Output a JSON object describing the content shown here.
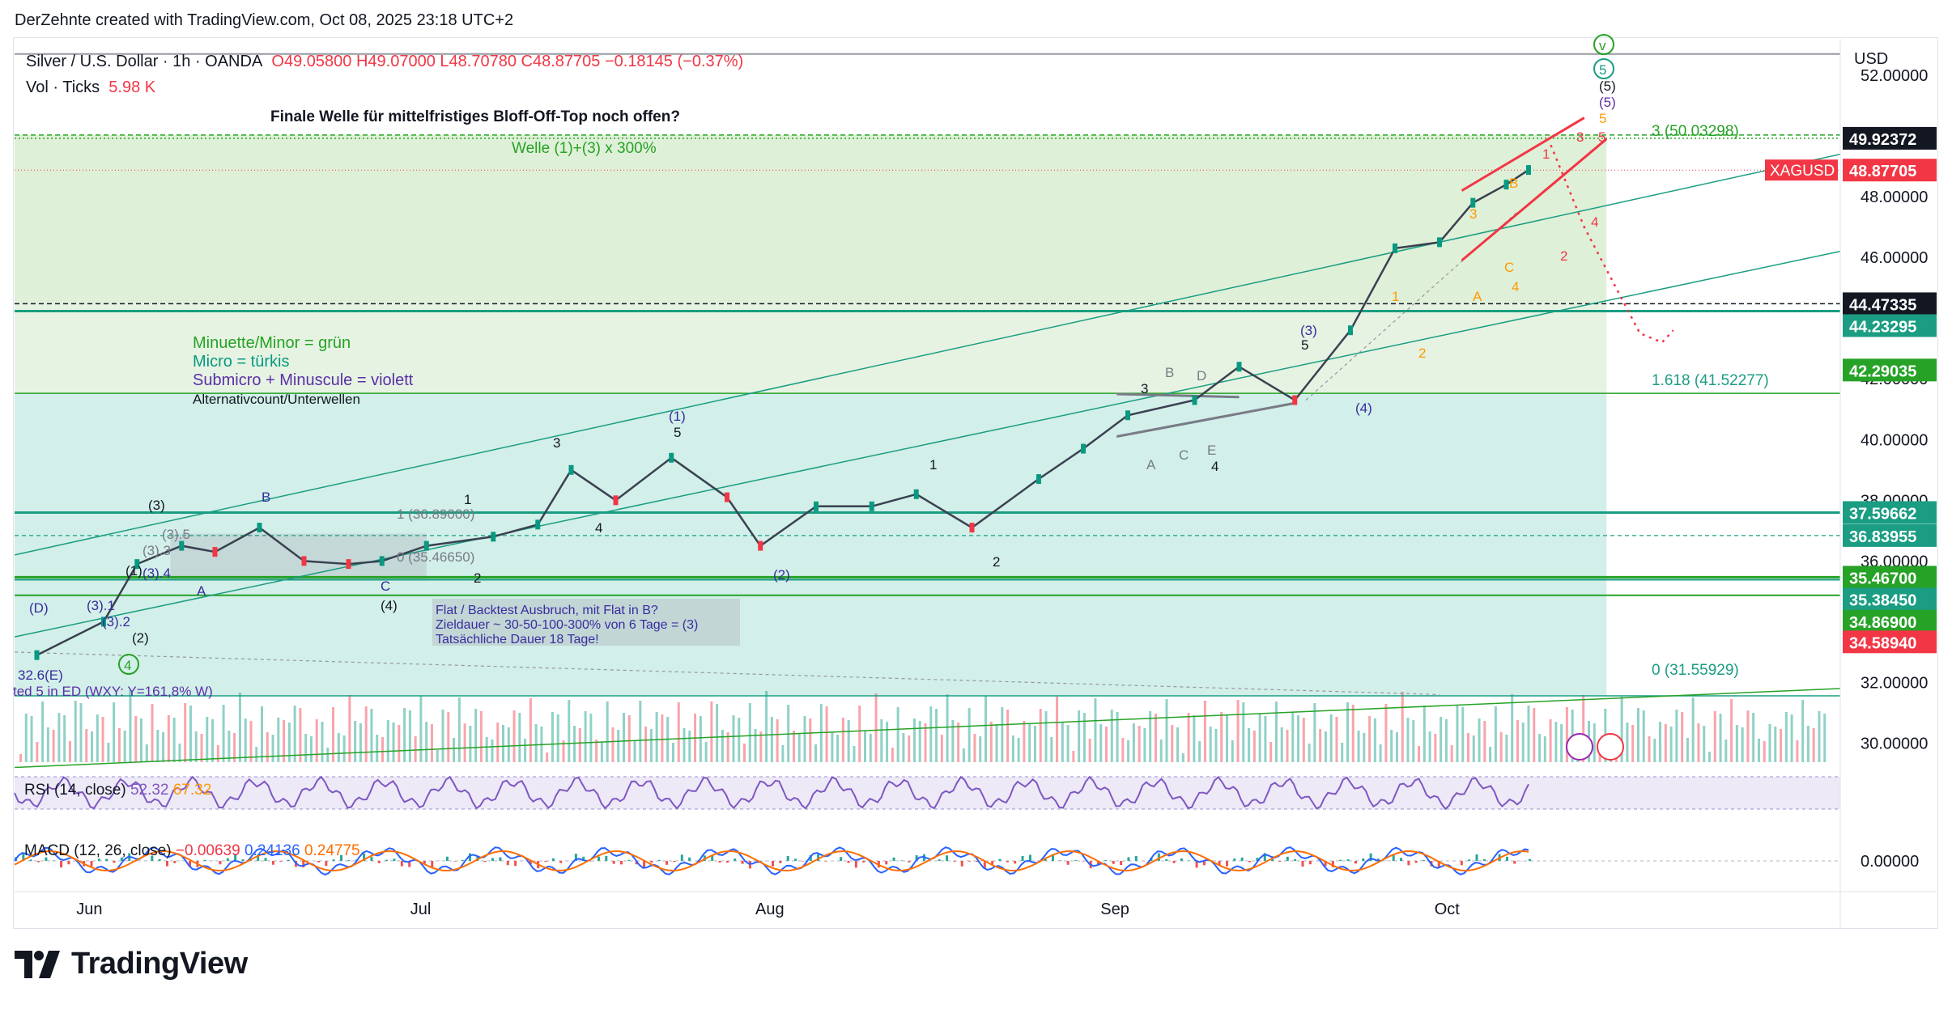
{
  "header": {
    "created_by": "DerZehnte created with TradingView.com, Oct 08, 2025 23:18 UTC+2"
  },
  "symbol": {
    "name": "Silver / U.S. Dollar · 1h · OANDA",
    "open": "O49.05800",
    "high": "H49.07000",
    "low": "L48.70780",
    "close": "C48.87705",
    "change": "−0.18145 (−0.37%)"
  },
  "volume": {
    "label": "Vol · Ticks",
    "value": "5.98 K"
  },
  "currency_button": "USD",
  "brand": "TradingView",
  "chart_data": {
    "type": "line",
    "title": "Finale Welle für mittelfristiges Bloff-Off-Top noch offen?",
    "x_labels": [
      "Jun",
      "Jul",
      "Aug",
      "Sep",
      "Oct"
    ],
    "y_ticks": [
      "52.00000",
      "50.00000",
      "48.00000",
      "46.00000",
      "44.00000",
      "42.00000",
      "40.00000",
      "38.00000",
      "36.00000",
      "34.00000",
      "32.00000",
      "30.00000"
    ],
    "ylim": [
      29.0,
      53.2
    ],
    "price_series": {
      "name": "XAGUSD",
      "x": [
        "2025-05-27",
        "2025-06-02",
        "2025-06-05",
        "2025-06-09",
        "2025-06-12",
        "2025-06-16",
        "2025-06-20",
        "2025-06-24",
        "2025-06-27",
        "2025-07-01",
        "2025-07-07",
        "2025-07-11",
        "2025-07-14",
        "2025-07-18",
        "2025-07-23",
        "2025-07-28",
        "2025-07-31",
        "2025-08-05",
        "2025-08-10",
        "2025-08-14",
        "2025-08-19",
        "2025-08-25",
        "2025-08-29",
        "2025-09-02",
        "2025-09-08",
        "2025-09-12",
        "2025-09-17",
        "2025-09-22",
        "2025-09-26",
        "2025-09-30",
        "2025-10-03",
        "2025-10-06",
        "2025-10-08"
      ],
      "y": [
        32.9,
        34.0,
        35.9,
        36.5,
        36.3,
        37.1,
        36.0,
        35.9,
        36.0,
        36.5,
        36.8,
        37.2,
        39.0,
        38.0,
        39.4,
        38.1,
        36.5,
        37.8,
        37.8,
        38.2,
        37.1,
        38.7,
        39.7,
        40.8,
        41.3,
        42.4,
        41.3,
        43.6,
        46.3,
        46.5,
        47.8,
        48.4,
        48.88
      ]
    },
    "price_labels": [
      {
        "text": "49.92372",
        "value": 49.92372,
        "style": "black"
      },
      {
        "text": "XAGUSD",
        "value": 48.87705,
        "style": "red",
        "prefix": true
      },
      {
        "text": "48.87705",
        "value": 48.87705,
        "style": "red"
      },
      {
        "text": "44.47335",
        "value": 44.47335,
        "style": "black"
      },
      {
        "text": "44.23295",
        "value": 44.23295,
        "style": "teal"
      },
      {
        "text": "42.29035",
        "value": 42.29035,
        "style": "green"
      },
      {
        "text": "37.59662",
        "value": 37.59662,
        "style": "teal"
      },
      {
        "text": "36.83955",
        "value": 36.83955,
        "style": "teal"
      },
      {
        "text": "35.46700",
        "value": 35.467,
        "style": "green"
      },
      {
        "text": "35.38450",
        "value": 35.3845,
        "style": "teal"
      },
      {
        "text": "34.86900",
        "value": 34.869,
        "style": "green"
      },
      {
        "text": "34.58940",
        "value": 34.5894,
        "style": "red"
      }
    ],
    "fib_labels": [
      "3 (50.03298)",
      "1.618 (41.52277)",
      "0 (31.55929)"
    ],
    "top_line_label": "Welle (1)+(3) x 300%",
    "legend_notes": [
      {
        "text": "Minuette/Minor = grün",
        "color": "#26a226"
      },
      {
        "text": "Micro = türkis",
        "color": "#089981"
      },
      {
        "text": "Submicro + Minuscule = violett",
        "color": "#5b2fa8"
      },
      {
        "text": "Alternativcount/Unterwellen",
        "color": "#131722"
      }
    ],
    "note_box": [
      "Flat / Backtest Ausbruch, mit Flat in B?",
      "Zieldauer ~ 30-50-100-300% von 6 Tage = (3)",
      "Tatsächliche Dauer 18 Tage!"
    ],
    "bottom_left_text": "ted 5 in ED (WXY: Y=161,8% W)",
    "wave_labels": [
      {
        "t": "v",
        "circle": true
      },
      {
        "t": "5",
        "circle": true
      },
      {
        "t": "(5)"
      },
      {
        "t": "(5)"
      },
      {
        "t": "5"
      },
      {
        "t": "3"
      },
      {
        "t": "5"
      },
      {
        "t": "1"
      },
      {
        "t": "B"
      },
      {
        "t": "3"
      },
      {
        "t": "C"
      },
      {
        "t": "4"
      },
      {
        "t": "2"
      },
      {
        "t": "4"
      },
      {
        "t": "1"
      },
      {
        "t": "A"
      },
      {
        "t": "2"
      },
      {
        "t": "(3)"
      },
      {
        "t": "5"
      },
      {
        "t": "(4)"
      },
      {
        "t": "3"
      },
      {
        "t": "B"
      },
      {
        "t": "D"
      },
      {
        "t": "A"
      },
      {
        "t": "C"
      },
      {
        "t": "E"
      },
      {
        "t": "4"
      },
      {
        "t": "1"
      },
      {
        "t": "2"
      },
      {
        "t": "(1)"
      },
      {
        "t": "5"
      },
      {
        "t": "3"
      },
      {
        "t": "4"
      },
      {
        "t": "(2)"
      },
      {
        "t": "1"
      },
      {
        "t": "2"
      },
      {
        "t": "1 (36.89000)"
      },
      {
        "t": "0 (35.46650)"
      },
      {
        "t": "C"
      },
      {
        "t": "(4)"
      },
      {
        "t": "(3)"
      },
      {
        "t": "B"
      },
      {
        "t": "(3).5"
      },
      {
        "t": "(3).3"
      },
      {
        "t": "(3).4"
      },
      {
        "t": "A"
      },
      {
        "t": "(1)"
      },
      {
        "t": "(D)"
      },
      {
        "t": "(3).1"
      },
      {
        "t": "(3).2"
      },
      {
        "t": "(2)"
      },
      {
        "t": "4",
        "circle": true
      },
      {
        "t": "32.6(E)"
      }
    ],
    "grid": false,
    "legend_position": "left"
  },
  "volume_pane": {
    "type": "bar",
    "note": "tick volume histogram"
  },
  "rsi": {
    "label": "RSI (14, close)",
    "value": "52.32",
    "signal": "67.32",
    "ylim": [
      0,
      100
    ],
    "bands": [
      30,
      70
    ]
  },
  "macd": {
    "label": "MACD (12, 26, close)",
    "hist": "−0.00639",
    "macd": "0.24136",
    "signal": "0.24775",
    "zero_label": "0.00000"
  },
  "colors": {
    "up": "#089981",
    "down": "#f23645",
    "green_zone": "#dff0d8",
    "teal_zone": "#d2efe9",
    "teal_line": "#1a9d82",
    "green_line": "#26a226",
    "red_line": "#f23645",
    "violet": "#4a3aa8"
  }
}
